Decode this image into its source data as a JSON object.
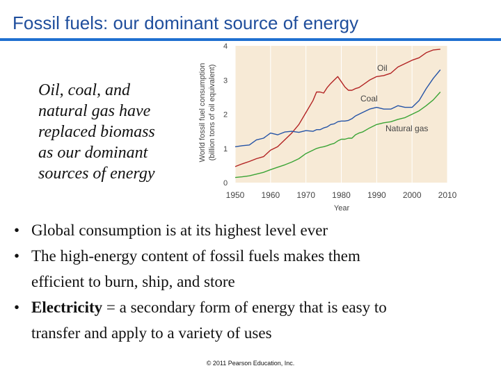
{
  "slide": {
    "title": "Fossil fuels: our dominant source of energy",
    "side_text": [
      "Oil, coal, and",
      "natural gas have",
      "replaced biomass",
      "as our dominant",
      "sources of energy"
    ],
    "bullet_symbol": "•",
    "bullets": [
      {
        "lines": [
          "Global consumption is at its highest level ever"
        ]
      },
      {
        "lines": [
          "The high-energy content of fossil fuels makes them",
          "efficient to burn, ship, and store"
        ]
      },
      {
        "term": "Electricity",
        "lines": [
          " = a secondary form of energy that is easy to",
          "transfer and apply to a variety of uses"
        ]
      }
    ],
    "footer": "© 2011 Pearson Education, Inc."
  },
  "colors": {
    "title": "#1f4e9c",
    "rule": "#1f6fd0",
    "oil": "#b22222",
    "coal": "#2453a6",
    "gas": "#3aa435",
    "plot_bg": "#f7ead6"
  },
  "chart_data": {
    "type": "line",
    "title": "",
    "xlabel": "Year",
    "ylabel": "World fossil fuel consumption",
    "ylabel2": "(billion tons of oil equivalent)",
    "xlim": [
      1950,
      2010
    ],
    "ylim": [
      0,
      4
    ],
    "xticks": [
      1950,
      1960,
      1970,
      1980,
      1990,
      2000,
      2010
    ],
    "yticks": [
      0,
      1,
      2,
      3,
      4
    ],
    "x": [
      1950,
      1952,
      1954,
      1956,
      1958,
      1960,
      1962,
      1964,
      1966,
      1968,
      1970,
      1972,
      1973,
      1974,
      1975,
      1976,
      1977,
      1978,
      1979,
      1980,
      1981,
      1982,
      1983,
      1984,
      1985,
      1986,
      1988,
      1990,
      1992,
      1994,
      1996,
      1998,
      2000,
      2002,
      2004,
      2006,
      2008
    ],
    "series": [
      {
        "name": "Oil",
        "label": "Oil",
        "values": [
          0.47,
          0.55,
          0.62,
          0.7,
          0.76,
          0.95,
          1.05,
          1.25,
          1.45,
          1.7,
          2.05,
          2.4,
          2.65,
          2.65,
          2.62,
          2.78,
          2.9,
          3.0,
          3.1,
          2.95,
          2.8,
          2.7,
          2.7,
          2.75,
          2.78,
          2.85,
          3.0,
          3.1,
          3.13,
          3.2,
          3.38,
          3.48,
          3.58,
          3.65,
          3.8,
          3.88,
          3.9
        ]
      },
      {
        "name": "Coal",
        "label": "Coal",
        "values": [
          1.05,
          1.08,
          1.1,
          1.25,
          1.3,
          1.45,
          1.4,
          1.48,
          1.5,
          1.47,
          1.52,
          1.5,
          1.55,
          1.55,
          1.6,
          1.63,
          1.7,
          1.72,
          1.78,
          1.8,
          1.8,
          1.82,
          1.87,
          1.95,
          2.0,
          2.05,
          2.15,
          2.2,
          2.15,
          2.15,
          2.25,
          2.2,
          2.2,
          2.4,
          2.75,
          3.05,
          3.3
        ]
      },
      {
        "name": "Natural gas",
        "label": "Natural gas",
        "values": [
          0.15,
          0.17,
          0.2,
          0.25,
          0.3,
          0.38,
          0.45,
          0.52,
          0.6,
          0.7,
          0.85,
          0.95,
          1.0,
          1.03,
          1.05,
          1.08,
          1.12,
          1.15,
          1.22,
          1.27,
          1.27,
          1.3,
          1.3,
          1.4,
          1.45,
          1.48,
          1.6,
          1.7,
          1.75,
          1.78,
          1.85,
          1.9,
          2.0,
          2.1,
          2.25,
          2.42,
          2.65
        ]
      }
    ]
  }
}
